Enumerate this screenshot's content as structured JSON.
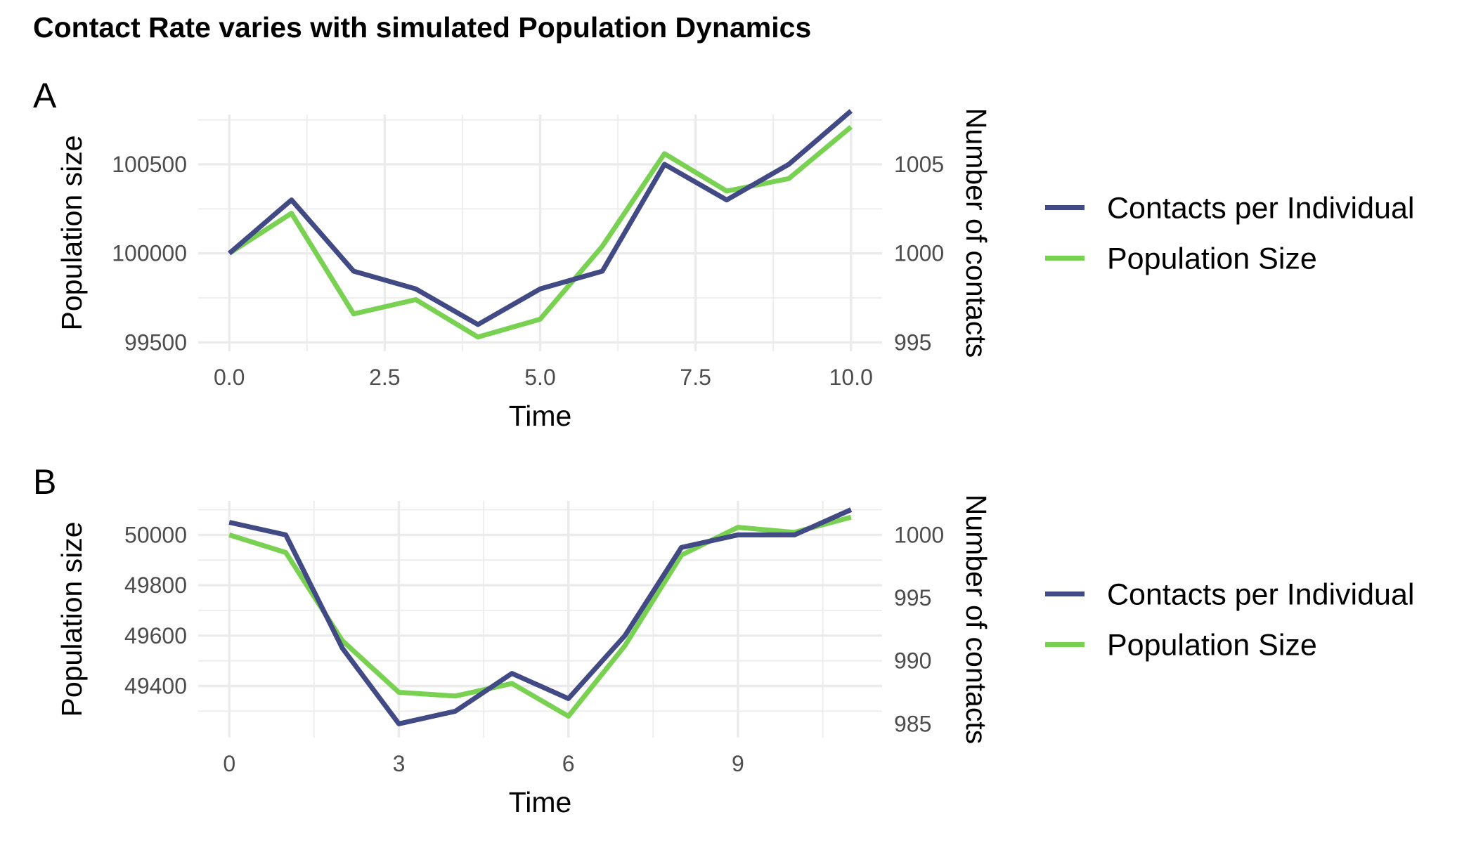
{
  "title": "Contact Rate varies with simulated Population Dynamics",
  "colors": {
    "contacts": "#414a84",
    "population": "#78d151"
  },
  "chart_data": [
    {
      "panel": "A",
      "type": "line",
      "xlabel": "Time",
      "ylabel": "Population size",
      "ylabel_right": "Number of contacts",
      "xlim": [
        -0.5,
        10.5
      ],
      "ylim": [
        99450,
        100780
      ],
      "x_major_ticks": [
        0,
        2.5,
        5,
        7.5,
        10
      ],
      "x_tick_labels": [
        "0.0",
        "2.5",
        "5.0",
        "7.5",
        "10.0"
      ],
      "x_minor_ticks": [
        1.25,
        3.75,
        6.25,
        8.75
      ],
      "y_major_ticks": [
        99500,
        100000,
        100500
      ],
      "y_tick_labels": [
        "99500",
        "100000",
        "100500"
      ],
      "y_minor_ticks": [
        99750,
        100250,
        100750
      ],
      "y2_major_ticks": [
        995,
        1000,
        1005
      ],
      "y2_tick_labels": [
        "995",
        "1000",
        "1005"
      ],
      "y2_lim": [
        994.5,
        1007.8
      ],
      "x": [
        0,
        1,
        2,
        3,
        4,
        5,
        6,
        7,
        8,
        9,
        10
      ],
      "series": [
        {
          "name": "Contacts per Individual",
          "axis": "right",
          "color": "#414a84",
          "values": [
            1000,
            1003,
            999,
            998,
            996,
            998,
            999,
            1005,
            1003,
            1005,
            1008
          ]
        },
        {
          "name": "Population Size",
          "axis": "left",
          "color": "#78d151",
          "values": [
            100000,
            100225,
            99660,
            99740,
            99530,
            99630,
            100040,
            100560,
            100350,
            100420,
            100710
          ]
        }
      ],
      "legend": {
        "position": "right",
        "entries": [
          "Contacts per Individual",
          "Population Size"
        ]
      }
    },
    {
      "panel": "B",
      "type": "line",
      "xlabel": "Time",
      "ylabel": "Population size",
      "ylabel_right": "Number of contacts",
      "xlim": [
        -0.55,
        11.55
      ],
      "ylim": [
        49195,
        50135
      ],
      "x_major_ticks": [
        0,
        3,
        6,
        9
      ],
      "x_tick_labels": [
        "0",
        "3",
        "6",
        "9"
      ],
      "x_minor_ticks": [
        1.5,
        4.5,
        7.5,
        10.5
      ],
      "y_major_ticks": [
        49400,
        49600,
        49800,
        50000
      ],
      "y_tick_labels": [
        "49400",
        "49600",
        "49800",
        "50000"
      ],
      "y_minor_ticks": [
        49300,
        49500,
        49700,
        49900,
        50100
      ],
      "y2_major_ticks": [
        985,
        990,
        995,
        1000
      ],
      "y2_tick_labels": [
        "985",
        "990",
        "995",
        "1000"
      ],
      "y2_lim": [
        983.9,
        1002.7
      ],
      "x": [
        0,
        1,
        2,
        3,
        4,
        5,
        6,
        7,
        8,
        9,
        10,
        11
      ],
      "series": [
        {
          "name": "Contacts per Individual",
          "axis": "right",
          "color": "#414a84",
          "values": [
            1001,
            1000,
            991,
            985,
            986,
            989,
            987,
            992,
            999,
            1000,
            1000,
            1002
          ]
        },
        {
          "name": "Population Size",
          "axis": "left",
          "color": "#78d151",
          "values": [
            50000,
            49930,
            49580,
            49375,
            49360,
            49410,
            49280,
            49560,
            49920,
            50030,
            50010,
            50070
          ]
        }
      ],
      "legend": {
        "position": "right",
        "entries": [
          "Contacts per Individual",
          "Population Size"
        ]
      }
    }
  ]
}
